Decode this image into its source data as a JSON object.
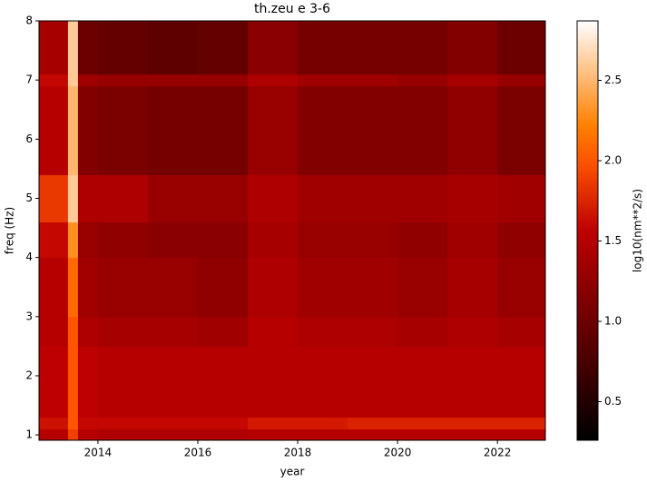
{
  "chart_data": {
    "type": "heatmap",
    "title": "th.zeu e 3-6",
    "x_label": "year",
    "y_label": "freq (Hz)",
    "colorbar_label": "log10(nm**2/s)",
    "colormap": "gist_heat",
    "xlim": [
      2012.82,
      2022.96
    ],
    "ylim": [
      0.91,
      8
    ],
    "clim": [
      0.26,
      2.87
    ],
    "xticks": [
      2014,
      2016,
      2018,
      2020,
      2022
    ],
    "yticks": [
      1,
      2,
      3,
      4,
      5,
      6,
      7,
      8
    ],
    "cticks": [
      0.5,
      {
        "value": 1,
        "label": "1.0"
      },
      1.5,
      {
        "value": 2,
        "label": "2.0"
      },
      2.5
    ],
    "x_edges": [
      2012.82,
      2013.4,
      2013.6,
      2014.0,
      2015.0,
      2016.0,
      2017.0,
      2018.0,
      2019.0,
      2020.0,
      2021.0,
      2022.0,
      2022.96
    ],
    "y_edges": [
      0.91,
      1.1,
      1.3,
      2.5,
      3.0,
      4.0,
      4.6,
      5.4,
      6.9,
      7.1,
      8.0
    ],
    "z": [
      [
        1.5,
        1.9,
        1.5,
        1.45,
        1.45,
        1.45,
        1.5,
        1.5,
        1.5,
        1.5,
        1.5,
        1.5
      ],
      [
        1.65,
        2.0,
        1.6,
        1.6,
        1.6,
        1.6,
        1.7,
        1.7,
        1.75,
        1.75,
        1.75,
        1.75
      ],
      [
        1.55,
        2.0,
        1.55,
        1.5,
        1.5,
        1.5,
        1.5,
        1.5,
        1.5,
        1.5,
        1.5,
        1.5
      ],
      [
        1.5,
        2.0,
        1.45,
        1.4,
        1.4,
        1.35,
        1.5,
        1.45,
        1.45,
        1.4,
        1.45,
        1.4
      ],
      [
        1.5,
        2.1,
        1.35,
        1.3,
        1.3,
        1.25,
        1.45,
        1.35,
        1.35,
        1.3,
        1.4,
        1.3
      ],
      [
        1.6,
        2.3,
        1.3,
        1.25,
        1.2,
        1.2,
        1.4,
        1.3,
        1.3,
        1.25,
        1.35,
        1.25
      ],
      [
        1.85,
        2.6,
        1.45,
        1.45,
        1.3,
        1.3,
        1.45,
        1.35,
        1.35,
        1.35,
        1.4,
        1.35
      ],
      [
        1.5,
        2.5,
        1.15,
        1.1,
        1.05,
        1.05,
        1.3,
        1.15,
        1.15,
        1.15,
        1.25,
        1.1
      ],
      [
        1.6,
        2.6,
        1.35,
        1.3,
        1.3,
        1.3,
        1.45,
        1.35,
        1.35,
        1.3,
        1.4,
        1.3
      ],
      [
        1.4,
        2.6,
        1.0,
        0.95,
        0.9,
        0.95,
        1.2,
        1.05,
        1.05,
        1.05,
        1.15,
        1.0
      ]
    ]
  }
}
